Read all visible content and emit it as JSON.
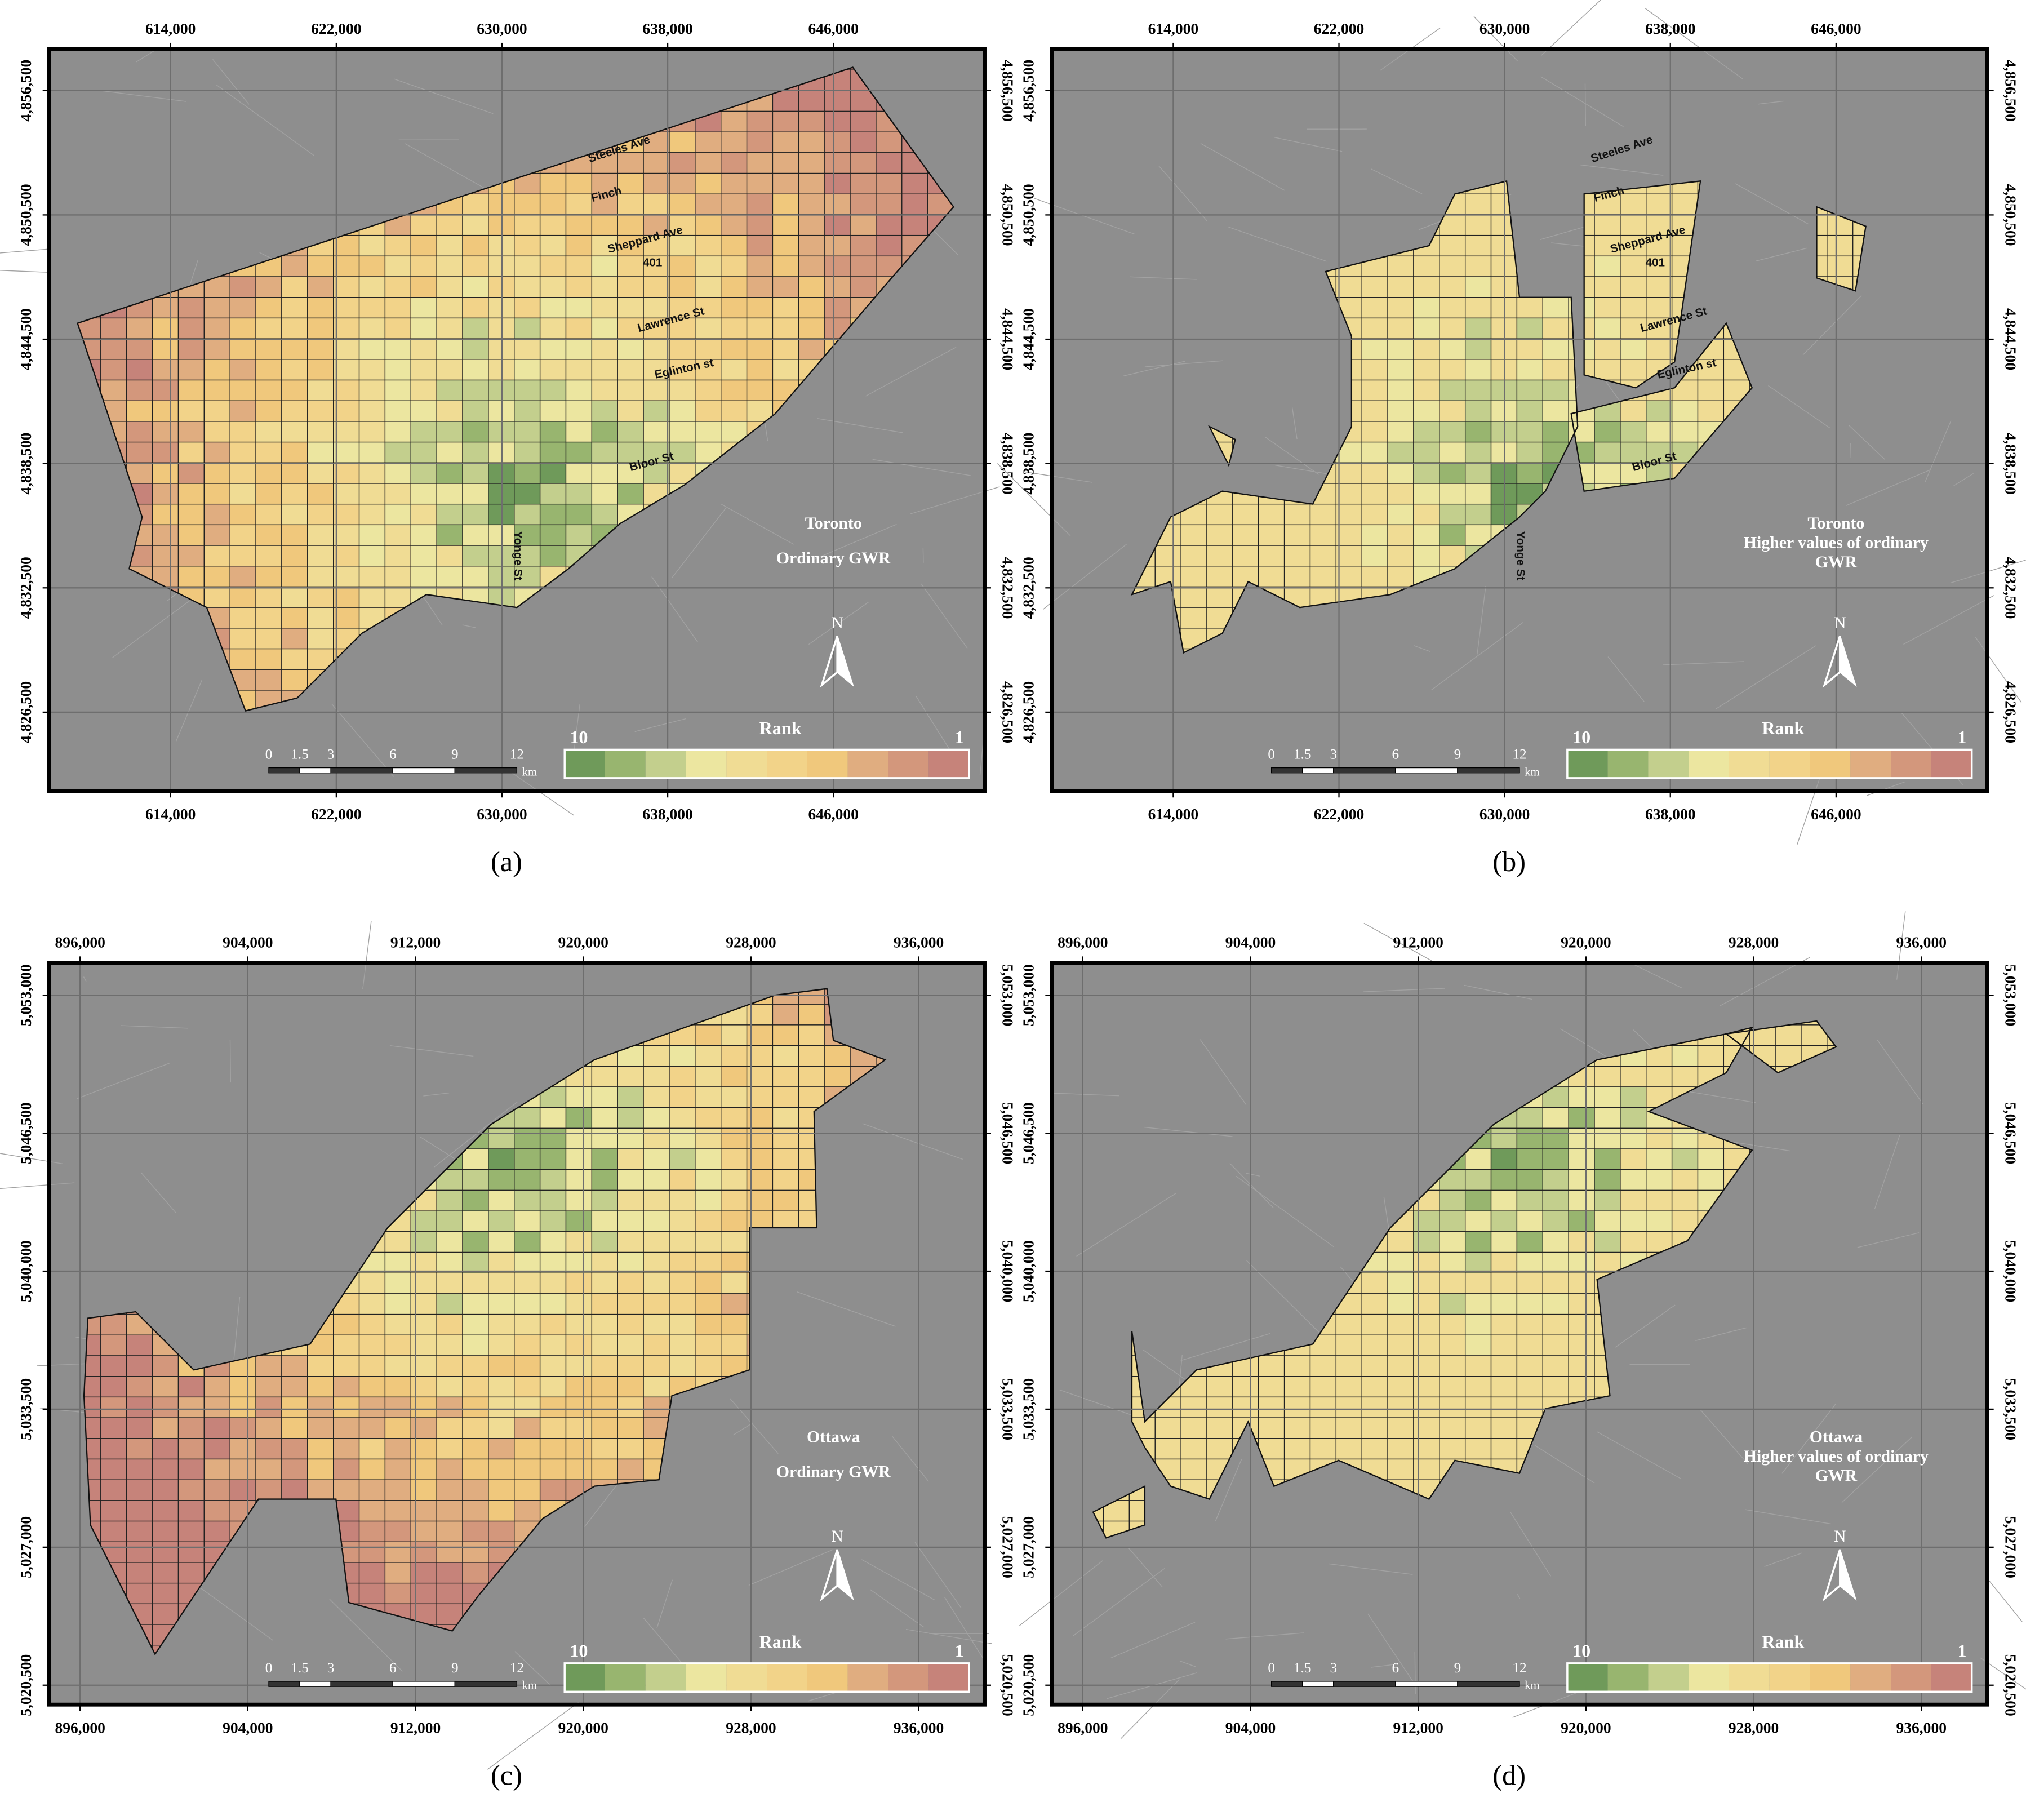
{
  "panels": [
    {
      "caption": "(a)",
      "title": [
        "Toronto",
        "Ordinary GWR"
      ],
      "xlim": [
        608136,
        653298
      ],
      "ylim": [
        4822696,
        4858496
      ],
      "xticks": [
        {
          "value": 614000,
          "label": "614,000"
        },
        {
          "value": 622000,
          "label": "622,000"
        },
        {
          "value": 630000,
          "label": "630,000"
        },
        {
          "value": 638000,
          "label": "638,000"
        },
        {
          "value": 646000,
          "label": "646,000"
        }
      ],
      "yticks": [
        {
          "value": 4856500,
          "label": "4,856,500"
        },
        {
          "value": 4850500,
          "label": "4,850,500"
        },
        {
          "value": 4844500,
          "label": "4,844,500"
        },
        {
          "value": 4838500,
          "label": "4,838,500"
        },
        {
          "value": 4832500,
          "label": "4,832,500"
        },
        {
          "value": 4826500,
          "label": "4,826,500"
        }
      ],
      "road_labels": [
        "Steeles Ave",
        "Finch",
        "Sheppard Ave",
        "401",
        "Lawrence St",
        "Eglinton st",
        "Bloor St",
        "Yonge St"
      ],
      "legend": {
        "title": "Rank",
        "max_label": 10,
        "min_label": 1,
        "colors": [
          "#6f9a5a",
          "#98b56f",
          "#c3cf8d",
          "#ece6a0",
          "#f0dc94",
          "#f2d389",
          "#f0c87c",
          "#e0ad80",
          "#d3977c",
          "#c6837a"
        ]
      },
      "scale_bar": {
        "ticks": [
          0,
          1.5,
          3,
          6,
          9,
          12
        ],
        "unit": "km"
      },
      "north": "N"
    },
    {
      "caption": "(b)",
      "title": [
        "Toronto",
        "Higher values of ordinary",
        "GWR"
      ],
      "xlim": [
        608136,
        653298
      ],
      "ylim": [
        4822696,
        4858496
      ],
      "xticks": [
        {
          "value": 614000,
          "label": "614,000"
        },
        {
          "value": 622000,
          "label": "622,000"
        },
        {
          "value": 630000,
          "label": "630,000"
        },
        {
          "value": 638000,
          "label": "638,000"
        },
        {
          "value": 646000,
          "label": "646,000"
        }
      ],
      "yticks": [
        {
          "value": 4856500,
          "label": "4,856,500"
        },
        {
          "value": 4850500,
          "label": "4,850,500"
        },
        {
          "value": 4844500,
          "label": "4,844,500"
        },
        {
          "value": 4838500,
          "label": "4,838,500"
        },
        {
          "value": 4832500,
          "label": "4,832,500"
        },
        {
          "value": 4826500,
          "label": "4,826,500"
        }
      ],
      "road_labels": [
        "Steeles Ave",
        "Finch",
        "Sheppard Ave",
        "401",
        "Lawrence St",
        "Eglinton st",
        "Bloor St",
        "Yonge St"
      ],
      "legend": {
        "title": "Rank",
        "max_label": 10,
        "min_label": 1,
        "colors": [
          "#6f9a5a",
          "#98b56f",
          "#c3cf8d",
          "#ece6a0",
          "#f0dc94",
          "#f2d389",
          "#f0c87c",
          "#e0ad80",
          "#d3977c",
          "#c6837a"
        ]
      },
      "scale_bar": {
        "ticks": [
          0,
          1.5,
          3,
          6,
          9,
          12
        ],
        "unit": "km"
      },
      "north": "N"
    },
    {
      "caption": "(c)",
      "title": [
        "Ottawa",
        "Ordinary GWR"
      ],
      "xlim": [
        894521,
        939143
      ],
      "ylim": [
        5019585,
        5054524
      ],
      "xticks": [
        {
          "value": 896000,
          "label": "896,000"
        },
        {
          "value": 904000,
          "label": "904,000"
        },
        {
          "value": 912000,
          "label": "912,000"
        },
        {
          "value": 920000,
          "label": "920,000"
        },
        {
          "value": 928000,
          "label": "928,000"
        },
        {
          "value": 936000,
          "label": "936,000"
        }
      ],
      "yticks": [
        {
          "value": 5053000,
          "label": "5,053,000"
        },
        {
          "value": 5046500,
          "label": "5,046,500"
        },
        {
          "value": 5040000,
          "label": "5,040,000"
        },
        {
          "value": 5033500,
          "label": "5,033,500"
        },
        {
          "value": 5027000,
          "label": "5,027,000"
        },
        {
          "value": 5020500,
          "label": "5,020,500"
        }
      ],
      "road_labels": [],
      "legend": {
        "title": "Rank",
        "max_label": 10,
        "min_label": 1,
        "colors": [
          "#6f9a5a",
          "#98b56f",
          "#c3cf8d",
          "#ece6a0",
          "#f0dc94",
          "#f2d389",
          "#f0c87c",
          "#e0ad80",
          "#d3977c",
          "#c6837a"
        ]
      },
      "scale_bar": {
        "ticks": [
          0,
          1.5,
          3,
          6,
          9,
          12
        ],
        "unit": "km"
      },
      "north": "N"
    },
    {
      "caption": "(d)",
      "title": [
        "Ottawa",
        "Higher values of ordinary",
        "GWR"
      ],
      "xlim": [
        894521,
        939143
      ],
      "ylim": [
        5019585,
        5054524
      ],
      "xticks": [
        {
          "value": 896000,
          "label": "896,000"
        },
        {
          "value": 904000,
          "label": "904,000"
        },
        {
          "value": 912000,
          "label": "912,000"
        },
        {
          "value": 920000,
          "label": "920,000"
        },
        {
          "value": 928000,
          "label": "928,000"
        },
        {
          "value": 936000,
          "label": "936,000"
        }
      ],
      "yticks": [
        {
          "value": 5053000,
          "label": "5,053,000"
        },
        {
          "value": 5046500,
          "label": "5,046,500"
        },
        {
          "value": 5040000,
          "label": "5,040,000"
        },
        {
          "value": 5033500,
          "label": "5,033,500"
        },
        {
          "value": 5027000,
          "label": "5,027,000"
        },
        {
          "value": 5020500,
          "label": "5,020,500"
        }
      ],
      "road_labels": [],
      "legend": {
        "title": "Rank",
        "max_label": 10,
        "min_label": 1,
        "colors": [
          "#6f9a5a",
          "#98b56f",
          "#c3cf8d",
          "#ece6a0",
          "#f0dc94",
          "#f2d389",
          "#f0c87c",
          "#e0ad80",
          "#d3977c",
          "#c6837a"
        ]
      },
      "scale_bar": {
        "ticks": [
          0,
          1.5,
          3,
          6,
          9,
          12
        ],
        "unit": "km"
      },
      "north": "N"
    }
  ]
}
